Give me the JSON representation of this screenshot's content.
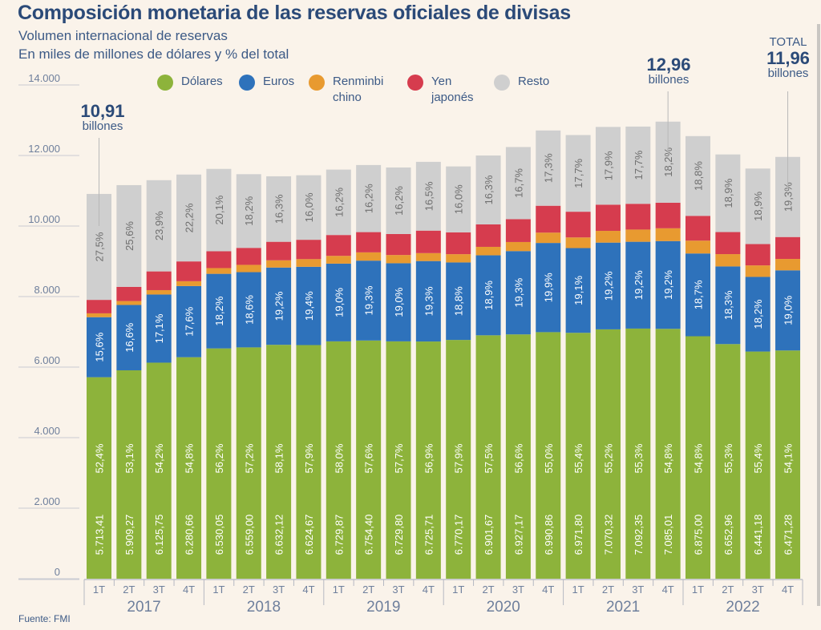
{
  "header": {
    "title": "Composición monetaria de las reservas oficiales de divisas",
    "subtitle_line1": "Volumen internacional de reservas",
    "subtitle_line2": "En miles de millones de dólares y % del total"
  },
  "legend": [
    {
      "key": "dolares",
      "label": "Dólares",
      "color": "#8db33b"
    },
    {
      "key": "euros",
      "label": "Euros",
      "color": "#2e72bb"
    },
    {
      "key": "renminbi",
      "label": "Renminbi\nchino",
      "color": "#e89a30"
    },
    {
      "key": "yen",
      "label": "Yen\njaponés",
      "color": "#d63c4e"
    },
    {
      "key": "resto",
      "label": "Resto",
      "color": "#cfcfcf"
    }
  ],
  "annotations": {
    "first": {
      "value": "10,91",
      "unit": "billones",
      "bar_index": 0
    },
    "peak": {
      "value": "12,96",
      "unit": "billones",
      "bar_index": 19
    },
    "last": {
      "prefix": "TOTAL",
      "value": "11,96",
      "unit": "billones",
      "bar_index": 23
    }
  },
  "source": "Fuente: FMI",
  "chart_data": {
    "type": "bar",
    "stacked": true,
    "title": "Composición monetaria de las reservas oficiales de divisas",
    "subtitle": "Volumen internacional de reservas. En miles de millones de dólares y % del total",
    "xlabel": "",
    "ylabel": "",
    "ylim": [
      0,
      14000
    ],
    "yticks": [
      0,
      2000,
      4000,
      6000,
      8000,
      10000,
      12000,
      14000
    ],
    "ytick_labels": [
      "0",
      "2.000",
      "4.000",
      "6.000",
      "8.000",
      "10.000",
      "12.000",
      "14.000"
    ],
    "grid": true,
    "legend_position": "top",
    "years": [
      "2017",
      "2018",
      "2019",
      "2020",
      "2021",
      "2022"
    ],
    "categories": [
      "1T",
      "2T",
      "3T",
      "4T",
      "1T",
      "2T",
      "3T",
      "4T",
      "1T",
      "2T",
      "3T",
      "4T",
      "1T",
      "2T",
      "3T",
      "4T",
      "1T",
      "2T",
      "3T",
      "4T",
      "1T",
      "2T",
      "3T",
      "4T"
    ],
    "totals": [
      10910,
      11160,
      11300,
      11460,
      11620,
      11470,
      11410,
      11440,
      11600,
      11730,
      11660,
      11820,
      11690,
      12000,
      12240,
      12710,
      12580,
      12810,
      12820,
      12960,
      12550,
      12030,
      11630,
      11960
    ],
    "series": [
      {
        "name": "Dólares",
        "values": [
          5713.41,
          5909.27,
          6125.75,
          6280.66,
          6530.05,
          6559.0,
          6632.12,
          6624.67,
          6729.87,
          6754.4,
          6729.8,
          6725.71,
          6770.17,
          6901.67,
          6927.17,
          6990.86,
          6971.8,
          7070.32,
          7092.35,
          7085.01,
          6875.0,
          6652.96,
          6441.18,
          6471.28
        ],
        "value_labels": [
          "5.713,41",
          "5.909,27",
          "6.125,75",
          "6.280,66",
          "6.530,05",
          "6.559,00",
          "6.632,12",
          "6.624,67",
          "6.729,87",
          "6.754,40",
          "6.729,80",
          "6.725,71",
          "6.770,17",
          "6.901,67",
          "6.927,17",
          "6.990,86",
          "6.971,80",
          "7.070,32",
          "7.092,35",
          "7.085,01",
          "6.875,00",
          "6.652,96",
          "6.441,18",
          "6.471,28"
        ],
        "pct": [
          "52,4%",
          "53,1%",
          "54,2%",
          "54,8%",
          "56,2%",
          "57,2%",
          "58,1%",
          "57,9%",
          "58,0%",
          "57,6%",
          "57,7%",
          "56,9%",
          "57,9%",
          "57,5%",
          "56,6%",
          "55,0%",
          "55,4%",
          "55,2%",
          "55,3%",
          "54,8%",
          "54,8%",
          "55,3%",
          "55,4%",
          "54,1%"
        ]
      },
      {
        "name": "Euros",
        "pct_values": [
          15.6,
          16.6,
          17.1,
          17.6,
          18.2,
          18.6,
          19.2,
          19.4,
          19.0,
          19.3,
          19.0,
          19.3,
          18.8,
          18.9,
          19.3,
          19.9,
          19.1,
          19.2,
          19.2,
          19.2,
          18.7,
          18.3,
          18.2,
          19.0
        ],
        "pct": [
          "15,6%",
          "16,6%",
          "17,1%",
          "17,6%",
          "18,2%",
          "18,6%",
          "19,2%",
          "19,4%",
          "19,0%",
          "19,3%",
          "19,0%",
          "19,3%",
          "18,8%",
          "18,9%",
          "19,3%",
          "19,9%",
          "19,1%",
          "19,2%",
          "19,2%",
          "19,2%",
          "18,7%",
          "18,3%",
          "18,2%",
          "19,0%"
        ]
      },
      {
        "name": "Renminbi chino",
        "pct_values": [
          1.0,
          1.0,
          1.1,
          1.2,
          1.4,
          1.8,
          1.8,
          1.9,
          1.9,
          2.0,
          2.0,
          1.9,
          2.0,
          2.0,
          2.1,
          2.3,
          2.4,
          2.6,
          2.7,
          2.8,
          2.9,
          2.9,
          2.8,
          2.7
        ]
      },
      {
        "name": "Yen japonés",
        "pct_values": [
          3.5,
          3.6,
          4.7,
          4.9,
          4.1,
          4.2,
          4.6,
          4.8,
          5.1,
          4.9,
          5.1,
          5.4,
          5.3,
          5.3,
          5.3,
          6.0,
          5.8,
          5.8,
          5.7,
          5.6,
          5.6,
          5.2,
          5.2,
          5.2
        ]
      },
      {
        "name": "Resto",
        "pct_values": [
          27.5,
          25.6,
          23.9,
          22.2,
          20.1,
          18.2,
          16.3,
          16.0,
          16.2,
          16.2,
          16.2,
          16.5,
          16.0,
          16.3,
          16.7,
          17.3,
          17.7,
          17.9,
          17.7,
          18.2,
          18.8,
          18.9,
          18.9,
          19.3
        ],
        "pct": [
          "27,5%",
          "25,6%",
          "23,9%",
          "22,2%",
          "20,1%",
          "18,2%",
          "16,3%",
          "16,0%",
          "16,2%",
          "16,2%",
          "16,2%",
          "16,5%",
          "16,0%",
          "16,3%",
          "16,7%",
          "17,3%",
          "17,7%",
          "17,9%",
          "17,7%",
          "18,2%",
          "18,8%",
          "18,9%",
          "18,9%",
          "19,3%"
        ]
      }
    ]
  }
}
